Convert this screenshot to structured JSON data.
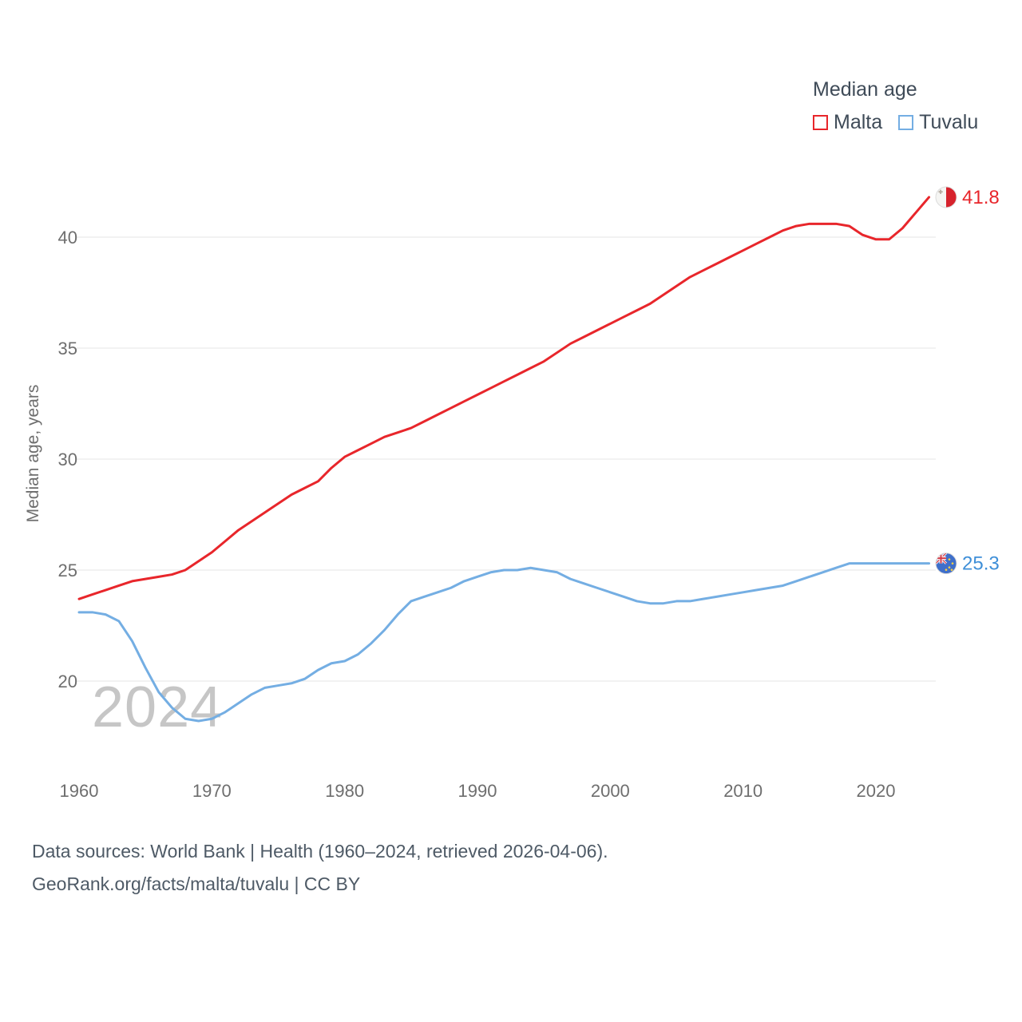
{
  "legend": {
    "title": "Median age",
    "series": [
      {
        "label": "Malta",
        "color": "#e8262b"
      },
      {
        "label": "Tuvalu",
        "color": "#74aee3"
      }
    ]
  },
  "watermark": "2024",
  "footer": {
    "line1": "Data sources: World Bank | Health (1960–2024, retrieved 2026-04-06).",
    "line2": "GeoRank.org/facts/malta/tuvalu | CC BY"
  },
  "chart_data": {
    "type": "line",
    "title": "Median age",
    "xlabel": "",
    "ylabel": "Median age, years",
    "xlim": [
      1958.5,
      2026.5
    ],
    "ylim": [
      17,
      43
    ],
    "grid": "horizontal",
    "legend_position": "top-right",
    "x_ticks": [
      1960,
      1970,
      1980,
      1990,
      2000,
      2010,
      2020
    ],
    "y_ticks": [
      20,
      25,
      30,
      35,
      40
    ],
    "years": [
      1960,
      1961,
      1962,
      1963,
      1964,
      1965,
      1966,
      1967,
      1968,
      1969,
      1970,
      1971,
      1972,
      1973,
      1974,
      1975,
      1976,
      1977,
      1978,
      1979,
      1980,
      1981,
      1982,
      1983,
      1984,
      1985,
      1986,
      1987,
      1988,
      1989,
      1990,
      1991,
      1992,
      1993,
      1994,
      1995,
      1996,
      1997,
      1998,
      1999,
      2000,
      2001,
      2002,
      2003,
      2004,
      2005,
      2006,
      2007,
      2008,
      2009,
      2010,
      2011,
      2012,
      2013,
      2014,
      2015,
      2016,
      2017,
      2018,
      2019,
      2020,
      2021,
      2022,
      2023,
      2024
    ],
    "series": [
      {
        "name": "Malta",
        "color": "#e8262b",
        "values": [
          23.7,
          23.9,
          24.1,
          24.3,
          24.5,
          24.6,
          24.7,
          24.8,
          25.0,
          25.4,
          25.8,
          26.3,
          26.8,
          27.2,
          27.6,
          28.0,
          28.4,
          28.7,
          29.0,
          29.6,
          30.1,
          30.4,
          30.7,
          31.0,
          31.2,
          31.4,
          31.7,
          32.0,
          32.3,
          32.6,
          32.9,
          33.2,
          33.5,
          33.8,
          34.1,
          34.4,
          34.8,
          35.2,
          35.5,
          35.8,
          36.1,
          36.4,
          36.7,
          37.0,
          37.4,
          37.8,
          38.2,
          38.5,
          38.8,
          39.1,
          39.4,
          39.7,
          40.0,
          40.3,
          40.5,
          40.6,
          40.6,
          40.6,
          40.5,
          40.1,
          39.9,
          39.9,
          40.4,
          41.1,
          41.8
        ]
      },
      {
        "name": "Tuvalu",
        "color": "#74aee3",
        "values": [
          23.1,
          23.1,
          23.0,
          22.7,
          21.8,
          20.6,
          19.5,
          18.8,
          18.3,
          18.2,
          18.3,
          18.6,
          19.0,
          19.4,
          19.7,
          19.8,
          19.9,
          20.1,
          20.5,
          20.8,
          20.9,
          21.2,
          21.7,
          22.3,
          23.0,
          23.6,
          23.8,
          24.0,
          24.2,
          24.5,
          24.7,
          24.9,
          25.0,
          25.0,
          25.1,
          25.0,
          24.9,
          24.6,
          24.4,
          24.2,
          24.0,
          23.8,
          23.6,
          23.5,
          23.5,
          23.6,
          23.6,
          23.7,
          23.8,
          23.9,
          24.0,
          24.1,
          24.2,
          24.3,
          24.5,
          24.7,
          24.9,
          25.1,
          25.3,
          25.3,
          25.3,
          25.3,
          25.3,
          25.3,
          25.3
        ]
      }
    ],
    "end_labels": [
      {
        "series": "Malta",
        "value": "41.8",
        "label_color": "#e8262b"
      },
      {
        "series": "Tuvalu",
        "value": "25.3",
        "label_color": "#3f8fd8"
      }
    ]
  }
}
